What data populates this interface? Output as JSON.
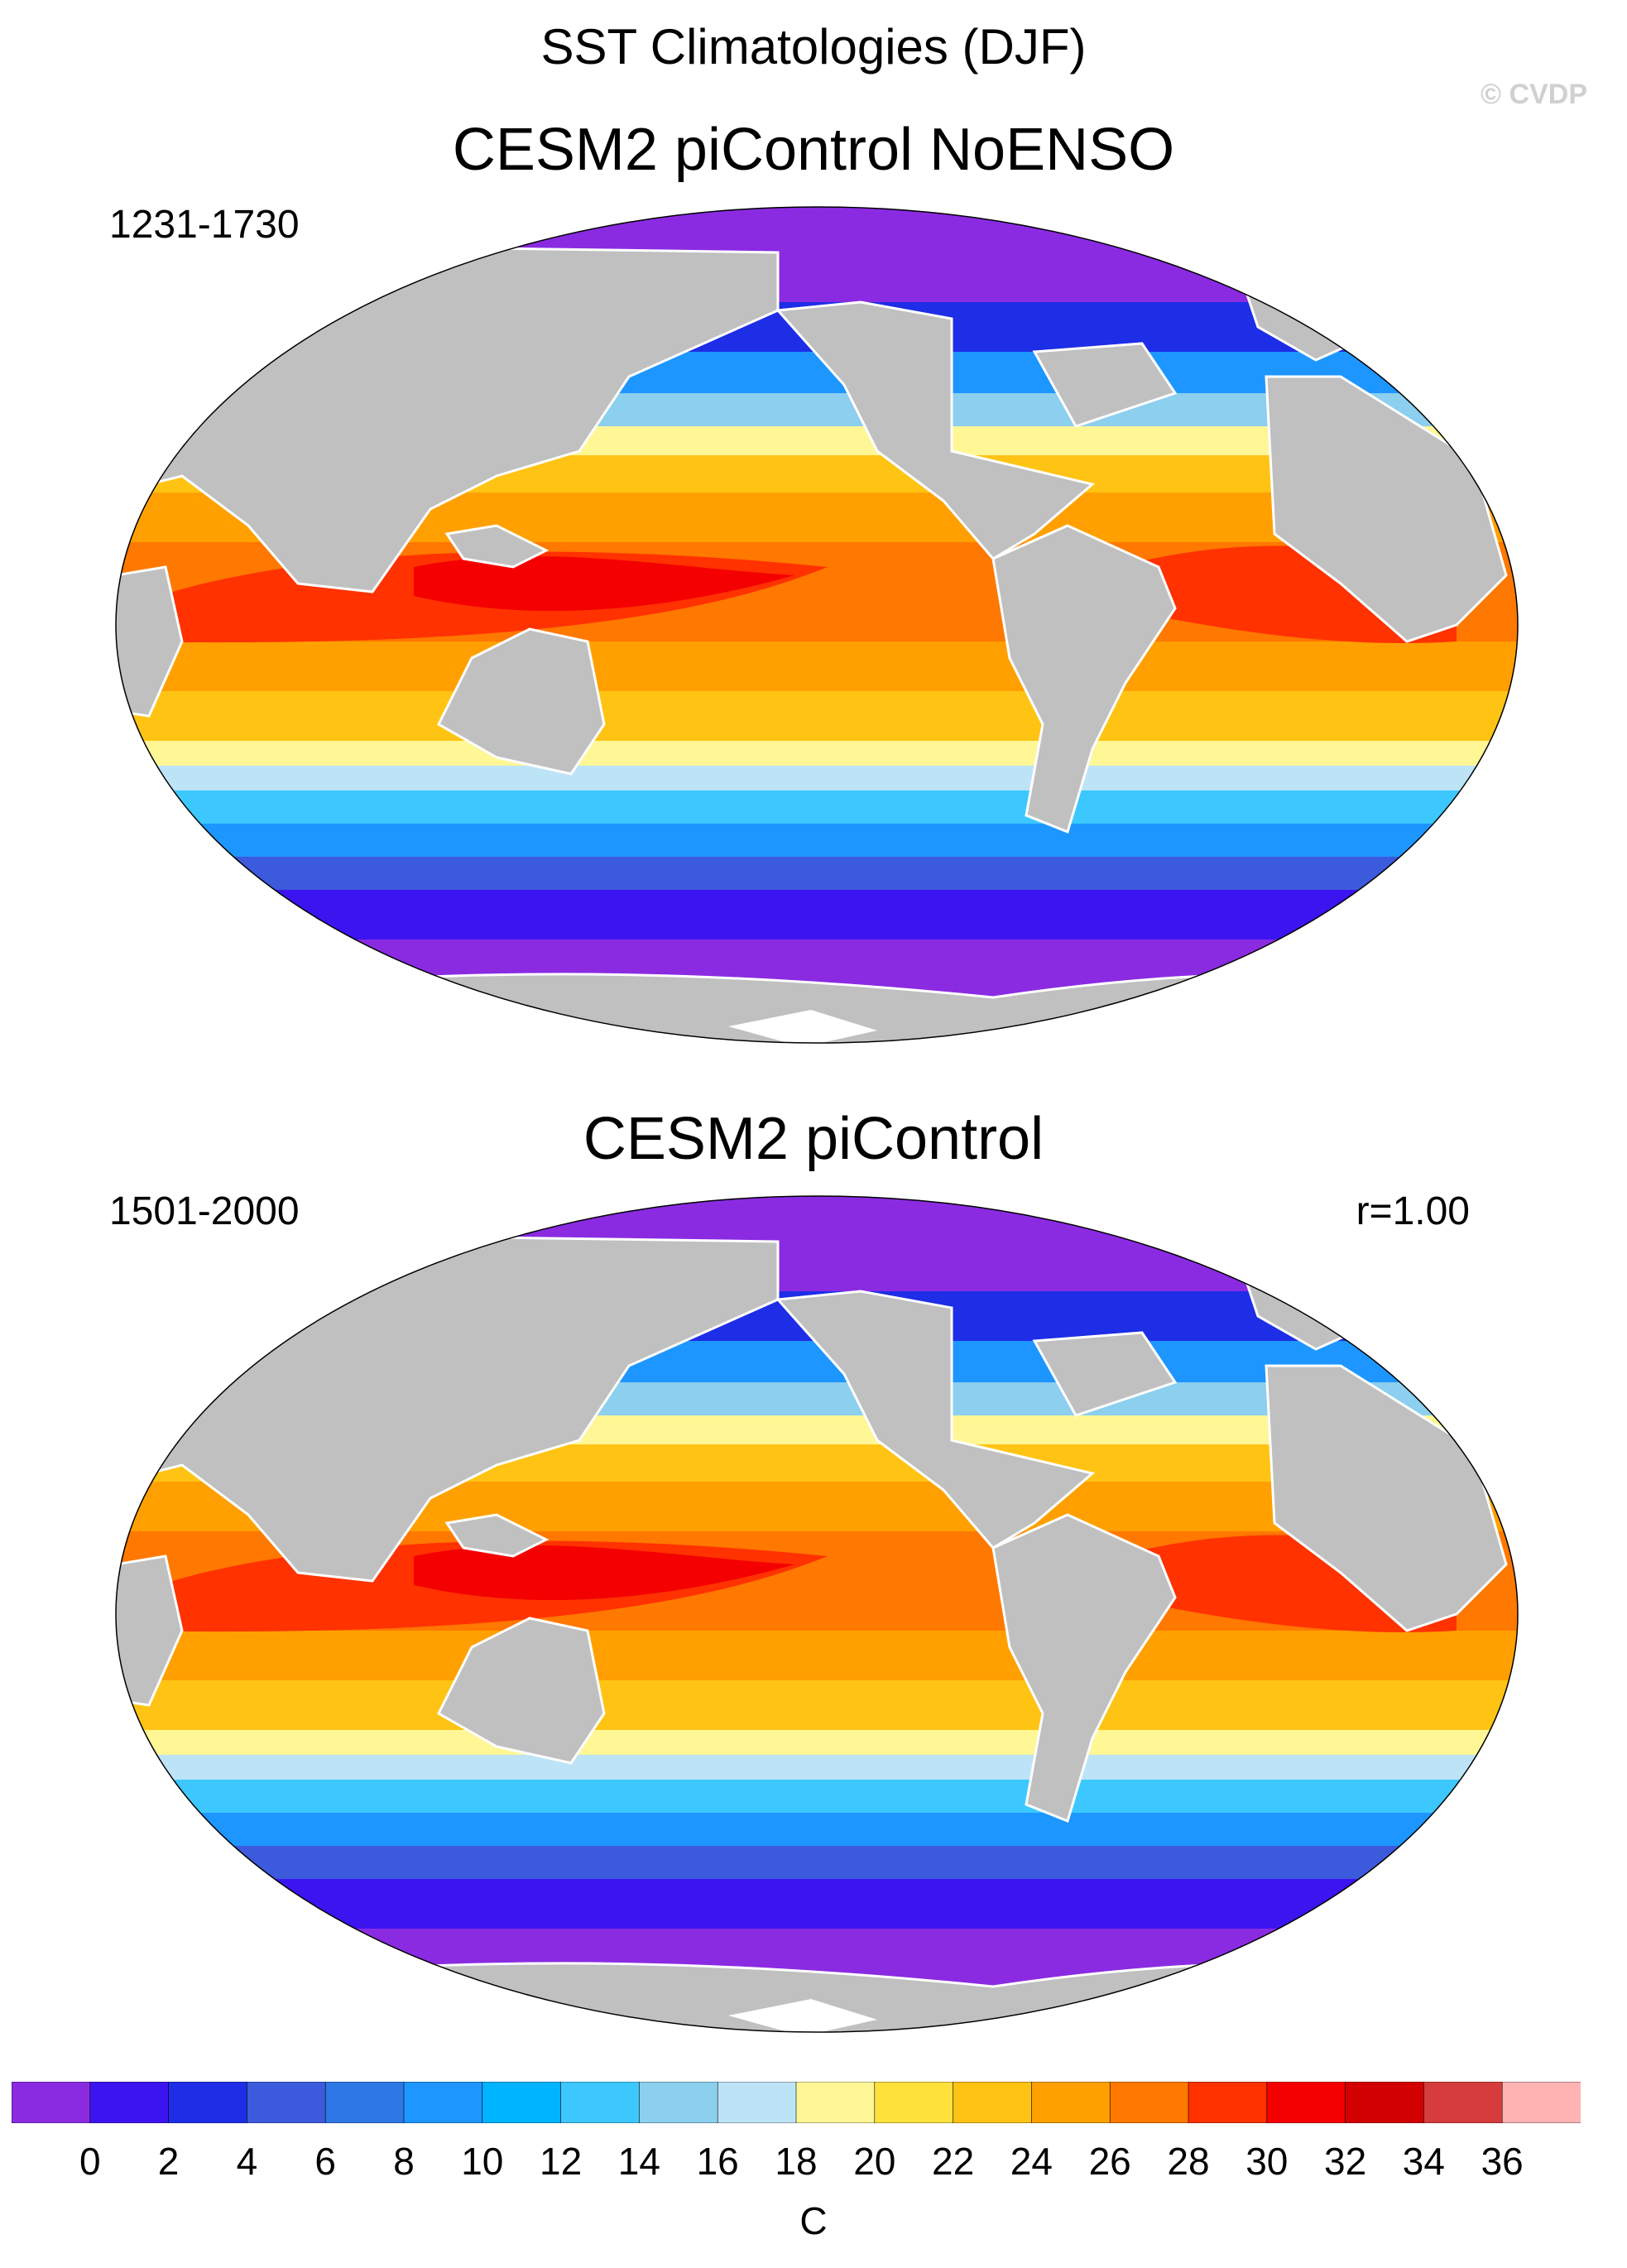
{
  "figure": {
    "title": "SST Climatologies (DJF)",
    "watermark": "© CVDP"
  },
  "panels": [
    {
      "title": "CESM2 piControl NoENSO",
      "period": "1231-1730",
      "corr": ""
    },
    {
      "title": "CESM2 piControl",
      "period": "1501-2000",
      "corr": "r=1.00"
    }
  ],
  "colorbar": {
    "unit": "C",
    "colors": [
      "#8a2be2",
      "#3c14f0",
      "#1e2de6",
      "#3c5adc",
      "#2d78e6",
      "#1e96ff",
      "#00b4ff",
      "#3cc8ff",
      "#8ccfef",
      "#bde3f7",
      "#fff696",
      "#ffe13c",
      "#ffc314",
      "#ffa000",
      "#ff7800",
      "#ff3200",
      "#f50000",
      "#d20000",
      "#d73c3c",
      "#ffb4b4"
    ],
    "tick_labels": [
      "0",
      "2",
      "4",
      "6",
      "8",
      "10",
      "12",
      "14",
      "16",
      "18",
      "20",
      "22",
      "24",
      "26",
      "28",
      "30",
      "32",
      "34",
      "36"
    ]
  },
  "colors": {
    "land": "#c0c0c0",
    "background": "#ffffff"
  }
}
